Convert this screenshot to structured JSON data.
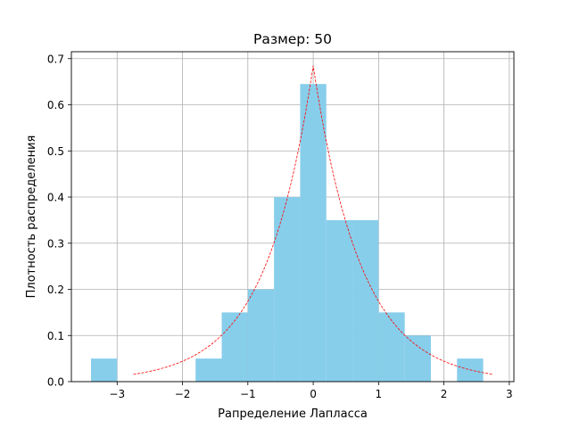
{
  "chart_data": {
    "type": "bar",
    "title": "Размер: 50",
    "xlabel": "Рапределение Лапласса",
    "ylabel": "Плотность распределения",
    "xlim": [
      -3.7,
      3.07
    ],
    "ylim": [
      0,
      0.715
    ],
    "grid": true,
    "colors": {
      "bars": "#87ceeb",
      "curve": "#ff0000",
      "grid": "#b0b0b0"
    },
    "x_ticks": [
      {
        "value": -3,
        "label": "−3"
      },
      {
        "value": -2,
        "label": "−2"
      },
      {
        "value": -1,
        "label": "−1"
      },
      {
        "value": 0,
        "label": "0"
      },
      {
        "value": 1,
        "label": "1"
      },
      {
        "value": 2,
        "label": "2"
      },
      {
        "value": 3,
        "label": "3"
      }
    ],
    "y_ticks": [
      {
        "value": 0.0,
        "label": "0.0"
      },
      {
        "value": 0.1,
        "label": "0.1"
      },
      {
        "value": 0.2,
        "label": "0.2"
      },
      {
        "value": 0.3,
        "label": "0.3"
      },
      {
        "value": 0.4,
        "label": "0.4"
      },
      {
        "value": 0.5,
        "label": "0.5"
      },
      {
        "value": 0.6,
        "label": "0.6"
      },
      {
        "value": 0.7,
        "label": "0.7"
      }
    ],
    "bars": [
      {
        "x0": -3.4,
        "x1": -3.0,
        "value": 0.05
      },
      {
        "x0": -3.0,
        "x1": -2.6,
        "value": 0.0
      },
      {
        "x0": -2.6,
        "x1": -2.2,
        "value": 0.0
      },
      {
        "x0": -2.2,
        "x1": -1.8,
        "value": 0.0
      },
      {
        "x0": -1.8,
        "x1": -1.4,
        "value": 0.05
      },
      {
        "x0": -1.4,
        "x1": -1.0,
        "value": 0.15
      },
      {
        "x0": -1.0,
        "x1": -0.6,
        "value": 0.2
      },
      {
        "x0": -0.6,
        "x1": -0.2,
        "value": 0.4
      },
      {
        "x0": -0.2,
        "x1": 0.2,
        "value": 0.645
      },
      {
        "x0": 0.2,
        "x1": 0.6,
        "value": 0.35
      },
      {
        "x0": 0.6,
        "x1": 1.0,
        "value": 0.35
      },
      {
        "x0": 1.0,
        "x1": 1.4,
        "value": 0.15
      },
      {
        "x0": 1.4,
        "x1": 1.8,
        "value": 0.1
      },
      {
        "x0": 1.8,
        "x1": 2.2,
        "value": 0.0
      },
      {
        "x0": 2.2,
        "x1": 2.6,
        "value": 0.05
      }
    ],
    "curve": {
      "kind": "laplace-pdf",
      "location": 0,
      "scale": 0.73,
      "x_range": [
        -2.75,
        2.75
      ]
    }
  }
}
